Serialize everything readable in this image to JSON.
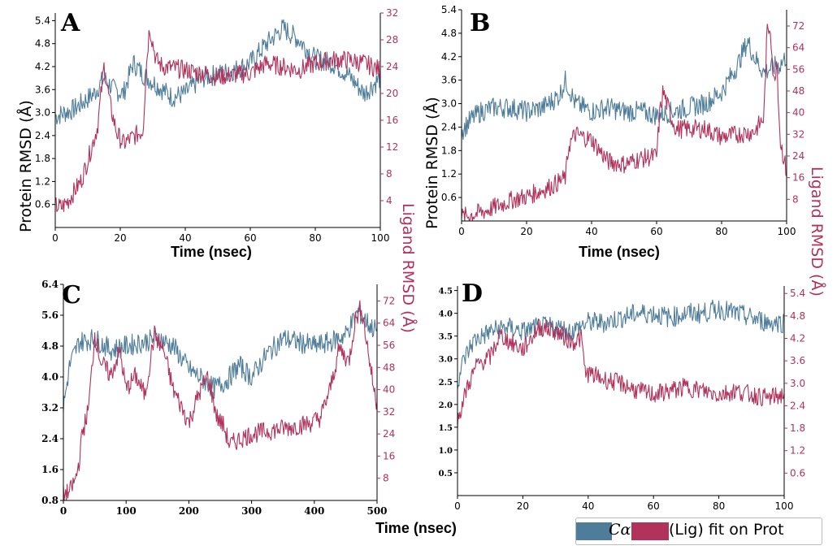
{
  "colors": {
    "protein": "#4e7d9a",
    "ligand": "#b1325a",
    "axis": "#000000"
  },
  "axis_titles": {
    "protein": "Protein RMSD (Å)",
    "ligand": "Ligand RMSD (Å)",
    "time_nsec": "Time (nsec)"
  },
  "legend": {
    "protein_label": "Cα",
    "ligand_label": "(Lig) fit on Prot"
  },
  "chart_data": [
    {
      "panel": "A",
      "type": "line",
      "xlim": [
        0,
        100
      ],
      "xticks": [
        "0",
        "20",
        "40",
        "60",
        "80",
        "100"
      ],
      "xlabel": "Time (nsec)",
      "ylim_left": [
        0,
        5.6
      ],
      "yticks_left": [
        "0.6",
        "1.2",
        "1.8",
        "2.4",
        "3.0",
        "3.6",
        "4.2",
        "4.8",
        "5.4"
      ],
      "ylim_right": [
        0,
        32
      ],
      "yticks_right": [
        "4",
        "8",
        "12",
        "16",
        "20",
        "24",
        "28",
        "32"
      ],
      "series": [
        {
          "name": "Cα",
          "axis": "left",
          "x": [
            0,
            3,
            6,
            9,
            12,
            15,
            18,
            21,
            24,
            27,
            30,
            33,
            36,
            40,
            45,
            50,
            55,
            60,
            65,
            70,
            75,
            80,
            85,
            90,
            95,
            100
          ],
          "values": [
            2.9,
            3.0,
            3.1,
            3.3,
            3.5,
            3.9,
            3.6,
            3.5,
            4.3,
            4.0,
            3.8,
            3.6,
            3.4,
            3.5,
            3.9,
            4.0,
            4.1,
            4.3,
            4.8,
            5.2,
            4.9,
            4.4,
            4.3,
            4.0,
            3.5,
            3.9
          ]
        },
        {
          "name": "(Lig) fit on Prot",
          "axis": "right",
          "x": [
            0,
            2,
            4,
            6,
            8,
            10,
            13,
            15,
            17,
            19,
            21,
            24,
            27,
            28,
            29,
            31,
            33,
            36,
            40,
            45,
            50,
            55,
            60,
            65,
            70,
            75,
            80,
            85,
            90,
            95,
            100
          ],
          "values": [
            3.2,
            3.0,
            4.0,
            5.5,
            7.0,
            10.0,
            15.0,
            24.0,
            18.0,
            14.0,
            12.5,
            13.5,
            14.5,
            24.0,
            30.0,
            25.0,
            24.0,
            23.8,
            23.5,
            23.0,
            22.5,
            22.8,
            23.0,
            24.5,
            24.0,
            23.5,
            24.5,
            25.0,
            25.0,
            24.5,
            23.5
          ]
        }
      ]
    },
    {
      "panel": "B",
      "type": "line",
      "xlim": [
        0,
        100
      ],
      "xticks": [
        "0",
        "20",
        "40",
        "60",
        "80",
        "100"
      ],
      "xlabel": "Time (nsec)",
      "ylim_left": [
        0,
        5.4
      ],
      "yticks_left": [
        "0.6",
        "1.2",
        "1.8",
        "2.4",
        "3.0",
        "3.6",
        "4.2",
        "4.8",
        "5.4"
      ],
      "ylim_right": [
        0,
        78
      ],
      "yticks_right": [
        "8",
        "16",
        "24",
        "32",
        "40",
        "48",
        "56",
        "64",
        "72"
      ],
      "series": [
        {
          "name": "Cα",
          "axis": "left",
          "x": [
            0,
            3,
            6,
            10,
            15,
            20,
            25,
            30,
            32,
            35,
            40,
            45,
            50,
            55,
            60,
            65,
            70,
            75,
            80,
            85,
            88,
            90,
            93,
            95,
            98,
            100
          ],
          "values": [
            2.3,
            2.6,
            2.8,
            2.9,
            2.9,
            2.8,
            2.9,
            3.2,
            3.6,
            3.0,
            2.8,
            2.9,
            2.8,
            2.8,
            2.7,
            2.8,
            2.9,
            3.0,
            3.3,
            4.0,
            4.6,
            4.2,
            3.8,
            3.9,
            4.0,
            4.2
          ]
        },
        {
          "name": "(Lig) fit on Prot",
          "axis": "right",
          "x": [
            0,
            4,
            8,
            12,
            16,
            20,
            24,
            28,
            32,
            33,
            35,
            40,
            45,
            50,
            55,
            60,
            61,
            62,
            64,
            66,
            70,
            75,
            80,
            85,
            90,
            93,
            94,
            95,
            96,
            97,
            98,
            100
          ],
          "values": [
            1.5,
            2.5,
            4.0,
            6.0,
            8.0,
            9.0,
            11.0,
            13.0,
            16.0,
            28.0,
            32.0,
            30.0,
            22.0,
            21.0,
            23.0,
            24.0,
            40.0,
            48.0,
            40.0,
            34.0,
            34.0,
            34.0,
            31.0,
            32.0,
            33.0,
            38.0,
            70.0,
            72.0,
            50.0,
            60.0,
            30.0,
            18.0
          ]
        }
      ]
    },
    {
      "panel": "C",
      "type": "line",
      "xlim": [
        0,
        500
      ],
      "xticks": [
        "0",
        "100",
        "200",
        "300",
        "400",
        "500"
      ],
      "xlabel": "Time (nsec)",
      "ylim_left": [
        0.8,
        6.4
      ],
      "yticks_left": [
        "0.8",
        "1.6",
        "2.4",
        "3.2",
        "4.0",
        "4.8",
        "5.6",
        "6.4"
      ],
      "ylim_right": [
        0,
        78
      ],
      "yticks_right": [
        "8",
        "16",
        "24",
        "32",
        "40",
        "48",
        "56",
        "64",
        "72"
      ],
      "series": [
        {
          "name": "Cα",
          "axis": "left",
          "x": [
            0,
            10,
            25,
            50,
            75,
            100,
            125,
            150,
            175,
            200,
            225,
            240,
            260,
            280,
            300,
            325,
            350,
            375,
            400,
            425,
            450,
            470,
            490,
            500
          ],
          "values": [
            3.2,
            4.3,
            4.9,
            5.0,
            4.7,
            4.8,
            4.9,
            5.0,
            4.8,
            4.2,
            3.9,
            3.7,
            3.9,
            4.3,
            4.0,
            4.6,
            5.0,
            4.9,
            4.8,
            4.9,
            5.1,
            5.7,
            5.3,
            5.2
          ]
        },
        {
          "name": "(Lig) fit on Prot",
          "axis": "right",
          "x": [
            0,
            10,
            20,
            25,
            30,
            40,
            50,
            60,
            75,
            90,
            100,
            115,
            130,
            145,
            160,
            175,
            190,
            200,
            215,
            230,
            245,
            255,
            265,
            280,
            300,
            325,
            350,
            375,
            395,
            410,
            425,
            440,
            455,
            465,
            475,
            485,
            495,
            500
          ],
          "values": [
            2,
            3,
            8,
            14,
            24,
            33,
            60,
            50,
            45,
            54,
            40,
            45,
            38,
            60,
            54,
            40,
            33,
            28,
            38,
            45,
            30,
            27,
            20,
            22,
            24,
            25,
            26,
            27,
            28,
            30,
            40,
            55,
            50,
            65,
            70,
            55,
            40,
            35
          ]
        }
      ]
    },
    {
      "panel": "D",
      "type": "line",
      "xlim": [
        0,
        100
      ],
      "xticks": [
        "0",
        "20",
        "40",
        "60",
        "80",
        "100"
      ],
      "xlabel": "",
      "ylim_left": [
        0,
        4.6
      ],
      "yticks_left": [
        "0.5",
        "1.0",
        "1.5",
        "2.0",
        "2.5",
        "3.0",
        "3.5",
        "4.0",
        "4.5"
      ],
      "ylim_right": [
        0,
        5.6
      ],
      "yticks_right": [
        "0.6",
        "1.2",
        "1.8",
        "2.4",
        "3.0",
        "3.6",
        "4.2",
        "4.8",
        "5.4"
      ],
      "series": [
        {
          "name": "Cα",
          "axis": "left",
          "x": [
            0,
            2,
            5,
            10,
            15,
            20,
            25,
            30,
            35,
            40,
            45,
            50,
            55,
            60,
            65,
            70,
            75,
            80,
            85,
            90,
            95,
            100
          ],
          "values": [
            2.5,
            3.0,
            3.4,
            3.6,
            3.7,
            3.6,
            3.7,
            3.7,
            3.6,
            3.8,
            3.8,
            3.9,
            4.0,
            4.0,
            3.9,
            4.0,
            4.0,
            4.1,
            4.0,
            3.9,
            3.8,
            3.8
          ]
        },
        {
          "name": "(Lig) fit on Prot",
          "axis": "right",
          "x": [
            0,
            3,
            6,
            10,
            13,
            16,
            20,
            25,
            30,
            35,
            38,
            39,
            42,
            45,
            50,
            55,
            60,
            65,
            70,
            75,
            80,
            85,
            90,
            95,
            100
          ],
          "values": [
            2.0,
            2.9,
            3.5,
            3.7,
            4.3,
            4.1,
            3.9,
            4.5,
            4.4,
            4.1,
            4.2,
            3.3,
            3.2,
            3.1,
            3.0,
            2.8,
            2.7,
            2.8,
            2.9,
            2.8,
            2.7,
            2.8,
            2.7,
            2.6,
            2.7
          ]
        }
      ]
    }
  ]
}
